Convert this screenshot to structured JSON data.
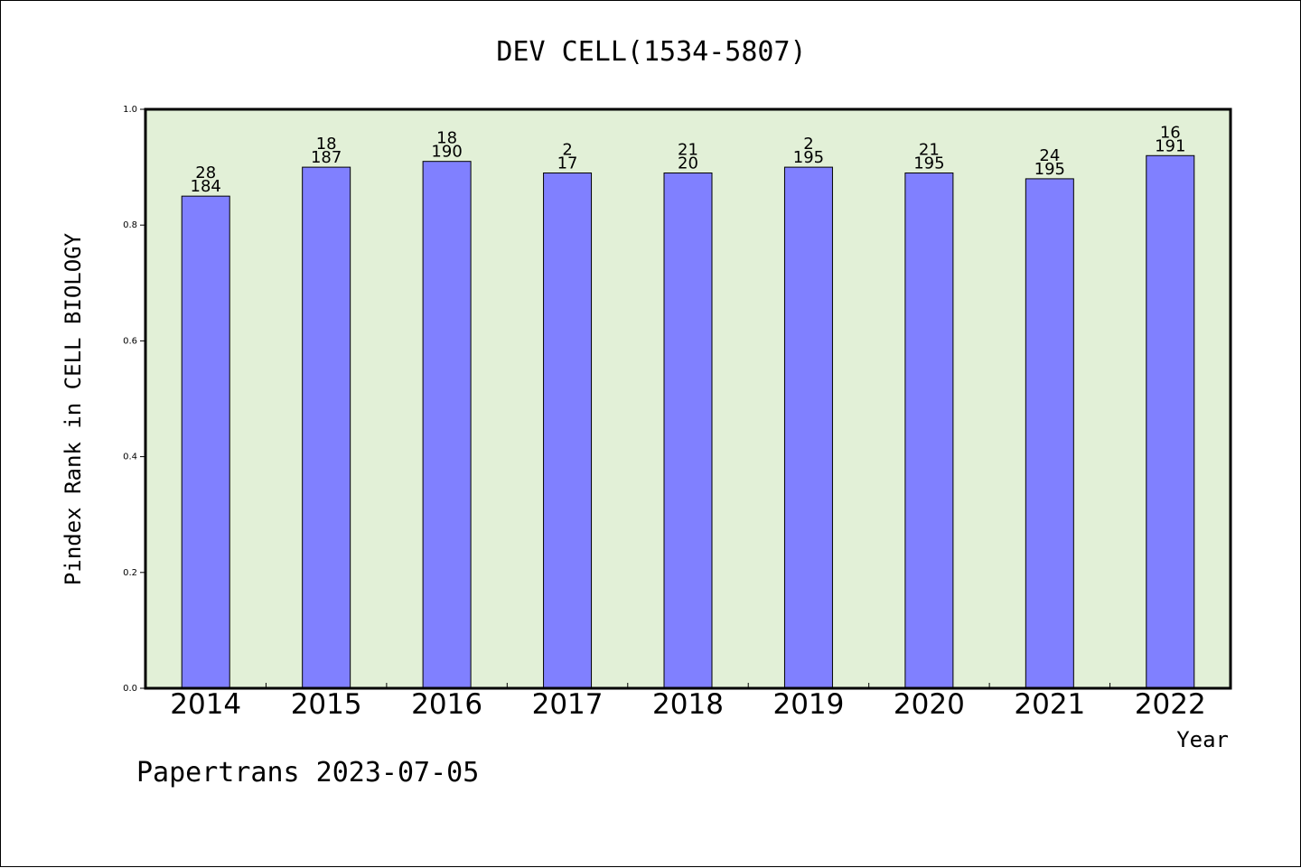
{
  "chart_data": {
    "type": "bar",
    "title": "DEV CELL(1534-5807)",
    "xlabel": "Year",
    "ylabel": "Pindex Rank in CELL BIOLOGY",
    "footer": "Papertrans 2023-07-05",
    "ylim": [
      0,
      1.0
    ],
    "yticks": [
      "0.0",
      "0.2",
      "0.4",
      "0.6",
      "0.8",
      "1.0"
    ],
    "grid": false,
    "categories": [
      "2014",
      "2015",
      "2016",
      "2017",
      "2018",
      "2019",
      "2020",
      "2021",
      "2022"
    ],
    "values": [
      0.85,
      0.9,
      0.91,
      0.89,
      0.89,
      0.9,
      0.89,
      0.88,
      0.92
    ],
    "label_top": [
      "28",
      "18",
      "18",
      "2",
      "21",
      "2",
      "21",
      "24",
      "16"
    ],
    "label_bottom": [
      "184",
      "187",
      "190",
      "17",
      "20",
      "195",
      "195",
      "195",
      "191"
    ],
    "colors": {
      "bar": "#8080ff",
      "plot_bg": "#e2f0d7",
      "axis": "#000000"
    }
  }
}
